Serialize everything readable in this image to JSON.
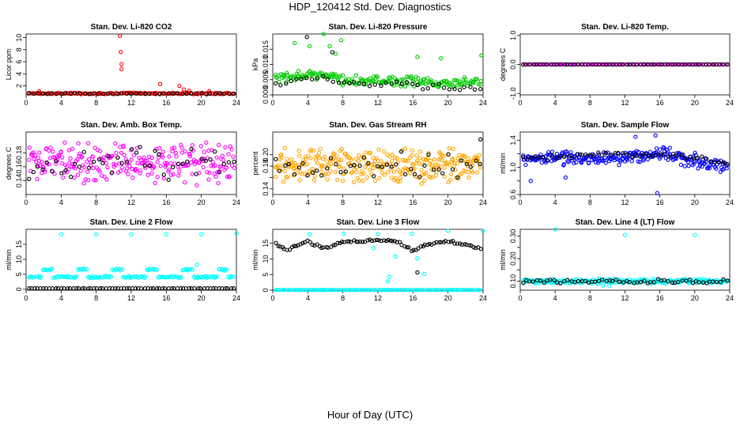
{
  "figure": {
    "title": "HDP_120412  Std. Dev. Diagnostics",
    "xlabel": "Hour of Day (UTC)"
  },
  "chart_data": [
    {
      "type": "scatter",
      "title": "Stan. Dev. Li-820 CO2",
      "ylabel": "Licor ppm",
      "xlim": [
        0,
        24
      ],
      "xticks": [
        0,
        4,
        8,
        12,
        16,
        20,
        24
      ],
      "ylim": [
        0.5,
        10.6
      ],
      "yticks": [
        2,
        4,
        6,
        8,
        10
      ],
      "series": [
        {
          "name": "primary",
          "color": "#ff0000",
          "profile": {
            "kind": "noise",
            "base": 0.75,
            "amp": 0.15,
            "n": 130
          },
          "points": [
            [
              10.7,
              10.3
            ],
            [
              10.8,
              7.6
            ],
            [
              10.9,
              5.6
            ],
            [
              10.9,
              4.8
            ],
            [
              15.3,
              2.3
            ],
            [
              17.5,
              2.0
            ],
            [
              18.0,
              1.4
            ],
            [
              18.6,
              1.2
            ],
            [
              20.9,
              1.1
            ],
            [
              1.5,
              1.1
            ]
          ]
        },
        {
          "name": "secondary",
          "color": "#000000",
          "profile": {
            "kind": "noise",
            "base": 0.7,
            "amp": 0.1,
            "n": 45
          }
        }
      ]
    },
    {
      "type": "scatter",
      "title": "Stan. Dev. Li-820 Pressure",
      "ylabel": "kPa",
      "xlim": [
        0,
        24
      ],
      "xticks": [
        0,
        4,
        8,
        12,
        16,
        20,
        24
      ],
      "ylim": [
        0,
        0.02
      ],
      "yticks": [
        0.0,
        0.005,
        0.01,
        0.015
      ],
      "ytick_labels": [
        "0.000",
        "0.005",
        "0.010",
        "0.015"
      ],
      "series": [
        {
          "name": "primary",
          "color": "#00cc00",
          "profile": {
            "kind": "segments",
            "segs": [
              [
                0,
                0.005
              ],
              [
                5,
                0.007
              ],
              [
                8,
                0.005
              ],
              [
                12,
                0.0045
              ],
              [
                24,
                0.004
              ]
            ],
            "amp": 0.002,
            "n": 200
          },
          "points": [
            [
              2.5,
              0.017
            ],
            [
              5.8,
              0.02
            ],
            [
              6.5,
              0.016
            ],
            [
              7.8,
              0.018
            ],
            [
              4.2,
              0.016
            ],
            [
              16.5,
              0.0125
            ],
            [
              19.2,
              0.012
            ],
            [
              23.8,
              0.013
            ],
            [
              7.2,
              0.0135
            ]
          ]
        },
        {
          "name": "secondary",
          "color": "#000000",
          "profile": {
            "kind": "segments",
            "segs": [
              [
                0,
                0.004
              ],
              [
                5,
                0.006
              ],
              [
                8,
                0.004
              ],
              [
                16,
                0.003
              ],
              [
                24,
                0.002
              ]
            ],
            "amp": 0.0015,
            "n": 40
          },
          "points": [
            [
              3.9,
              0.019
            ],
            [
              6.8,
              0.014
            ]
          ]
        }
      ]
    },
    {
      "type": "scatter",
      "title": "Stan. Dev. Li-820 Temp.",
      "ylabel": "degrees C",
      "xlim": [
        0,
        24
      ],
      "xticks": [
        0,
        4,
        8,
        12,
        16,
        20,
        24
      ],
      "ylim": [
        -1.05,
        1.05
      ],
      "yticks": [
        -1.0,
        0.0,
        1.0
      ],
      "ytick_labels": [
        "-1.0",
        "0.0",
        "1.0"
      ],
      "series": [
        {
          "name": "primary",
          "color": "#ff00ff",
          "profile": {
            "kind": "flat",
            "base": 0.0,
            "n": 120
          }
        },
        {
          "name": "secondary",
          "color": "#000000",
          "profile": {
            "kind": "flat",
            "base": 0.0,
            "n": 60
          }
        }
      ]
    },
    {
      "type": "scatter",
      "title": "Stan. Dev. Amb. Box Temp.",
      "ylabel": "degrees C",
      "xlim": [
        0,
        24
      ],
      "xticks": [
        0,
        4,
        8,
        12,
        16,
        20,
        24
      ],
      "ylim": [
        0.12,
        0.21
      ],
      "yticks": [
        0.14,
        0.16,
        0.18
      ],
      "ytick_labels": [
        "0.14",
        "0.16",
        "0.18"
      ],
      "series": [
        {
          "name": "primary",
          "color": "#ff00ff",
          "profile": {
            "kind": "noise",
            "base": 0.165,
            "amp": 0.032,
            "n": 260
          }
        },
        {
          "name": "secondary",
          "color": "#000000",
          "profile": {
            "kind": "noise",
            "base": 0.165,
            "amp": 0.028,
            "n": 45
          }
        }
      ]
    },
    {
      "type": "scatter",
      "title": "Stan. Dev. Gas Stream RH",
      "ylabel": "percent",
      "xlim": [
        0,
        24
      ],
      "xticks": [
        0,
        4,
        8,
        12,
        16,
        20,
        24
      ],
      "ylim": [
        0.13,
        0.24
      ],
      "yticks": [
        0.14,
        0.16,
        0.18,
        0.2
      ],
      "ytick_labels": [
        "0.14",
        "",
        "0.18",
        "0.20"
      ],
      "series": [
        {
          "name": "primary",
          "color": "#ffa500",
          "profile": {
            "kind": "noise",
            "base": 0.183,
            "amp": 0.035,
            "n": 300
          }
        },
        {
          "name": "secondary",
          "color": "#000000",
          "profile": {
            "kind": "noise",
            "base": 0.18,
            "amp": 0.03,
            "n": 45
          },
          "points": [
            [
              23.7,
              0.227
            ]
          ]
        }
      ]
    },
    {
      "type": "scatter",
      "title": "Stan. Dev. Sample Flow",
      "ylabel": "ml/min",
      "xlim": [
        0,
        24
      ],
      "xticks": [
        0,
        4,
        8,
        12,
        16,
        20,
        24
      ],
      "ylim": [
        0.6,
        1.52
      ],
      "yticks": [
        0.6,
        0.8,
        1.0,
        1.2,
        1.4
      ],
      "ytick_labels": [
        "0.6",
        "",
        "1.0",
        "",
        "1.4"
      ],
      "series": [
        {
          "name": "primary",
          "color": "#0000ff",
          "profile": {
            "kind": "segments",
            "segs": [
              [
                0,
                1.1
              ],
              [
                4,
                1.15
              ],
              [
                10,
                1.12
              ],
              [
                16,
                1.2
              ],
              [
                20,
                1.1
              ],
              [
                24,
                1.0
              ]
            ],
            "amp": 0.12,
            "n": 260
          },
          "points": [
            [
              15.5,
              1.47
            ],
            [
              13.2,
              1.45
            ],
            [
              15.7,
              0.62
            ],
            [
              5.2,
              0.85
            ],
            [
              1.2,
              0.8
            ]
          ]
        },
        {
          "name": "secondary",
          "color": "#000000",
          "profile": {
            "kind": "segments",
            "segs": [
              [
                0,
                1.12
              ],
              [
                10,
                1.2
              ],
              [
                20,
                1.15
              ],
              [
                24,
                1.05
              ]
            ],
            "amp": 0.05,
            "n": 50
          }
        }
      ]
    },
    {
      "type": "scatter",
      "title": "Stan. Dev. Line 2 Flow",
      "ylabel": "ml/min",
      "xlim": [
        0,
        24
      ],
      "xticks": [
        0,
        4,
        8,
        12,
        16,
        20,
        24
      ],
      "ylim": [
        -0.3,
        20
      ],
      "yticks": [
        0,
        5,
        10,
        15
      ],
      "series": [
        {
          "name": "primary",
          "color": "#00ffff",
          "profile": {
            "kind": "wave",
            "base": 4.5,
            "amp": 1.4,
            "period": 4,
            "n": 150
          },
          "points": [
            [
              4.0,
              18.3
            ],
            [
              8.0,
              18.3
            ],
            [
              12.0,
              18.3
            ],
            [
              16.0,
              18.3
            ],
            [
              20.0,
              18.4
            ],
            [
              24.0,
              18.6
            ],
            [
              19.5,
              8.2
            ]
          ]
        },
        {
          "name": "secondary",
          "color": "#000000",
          "profile": {
            "kind": "flat",
            "base": 0.3,
            "n": 70
          }
        }
      ]
    },
    {
      "type": "scatter",
      "title": "Stan. Dev. Line 3 Flow",
      "ylabel": "ml/min",
      "xlim": [
        0,
        24
      ],
      "xticks": [
        0,
        4,
        8,
        12,
        16,
        20,
        24
      ],
      "ylim": [
        0,
        19.5
      ],
      "yticks": [
        0,
        5,
        10,
        15
      ],
      "series": [
        {
          "name": "primary",
          "color": "#00ffff",
          "profile": {
            "kind": "flat",
            "base": 0.1,
            "n": 110
          },
          "points": [
            [
              4.2,
              17.9
            ],
            [
              8.1,
              18.1
            ],
            [
              12.0,
              18.0
            ],
            [
              15.9,
              18.1
            ],
            [
              20.0,
              19.0
            ],
            [
              24.0,
              19.0
            ],
            [
              13.1,
              2.8
            ],
            [
              13.3,
              4.3
            ],
            [
              17.3,
              5.2
            ],
            [
              11.5,
              13.5
            ],
            [
              14.0,
              10.8
            ],
            [
              16.5,
              10.2
            ]
          ]
        },
        {
          "name": "secondary",
          "color": "#000000",
          "profile": {
            "kind": "segments",
            "segs": [
              [
                0,
                15.8
              ],
              [
                1.5,
                12.8
              ],
              [
                4.0,
                15.7
              ],
              [
                6.0,
                13.2
              ],
              [
                8.0,
                15.6
              ],
              [
                10.0,
                15.5
              ],
              [
                12.0,
                16.0
              ],
              [
                14.0,
                15.8
              ],
              [
                16.0,
                12.5
              ],
              [
                17.5,
                14.5
              ],
              [
                20.0,
                15.8
              ],
              [
                24.0,
                13.2
              ]
            ],
            "amp": 0.5,
            "n": 90
          },
          "points": [
            [
              16.5,
              5.7
            ]
          ]
        }
      ]
    },
    {
      "type": "scatter",
      "title": "Stan. Dev. Line 4 (LT) Flow",
      "ylabel": "ml/min",
      "xlim": [
        0,
        24
      ],
      "xticks": [
        0,
        4,
        8,
        12,
        16,
        20,
        24
      ],
      "ylim": [
        0.06,
        0.33
      ],
      "yticks": [
        0.1,
        0.15,
        0.2,
        0.25,
        0.3
      ],
      "ytick_labels": [
        "0.10",
        "",
        "0.20",
        "",
        "0.30"
      ],
      "series": [
        {
          "name": "primary",
          "color": "#00ffff",
          "profile": {
            "kind": "noise",
            "base": 0.1,
            "amp": 0.012,
            "n": 220
          },
          "points": [
            [
              4.0,
              0.33
            ],
            [
              12.0,
              0.305
            ],
            [
              20.0,
              0.305
            ],
            [
              10.2,
              0.08
            ],
            [
              9.5,
              0.08
            ]
          ]
        },
        {
          "name": "secondary",
          "color": "#000000",
          "profile": {
            "kind": "noise",
            "base": 0.1,
            "amp": 0.01,
            "n": 60
          }
        }
      ]
    }
  ]
}
